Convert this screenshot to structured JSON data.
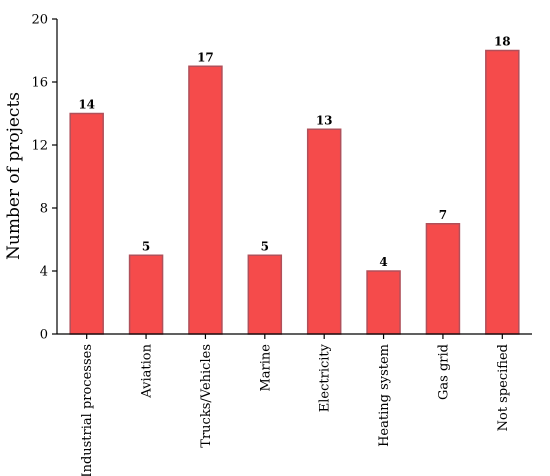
{
  "chart_data": {
    "type": "bar",
    "title": "",
    "xlabel": "",
    "ylabel": "Number of projects",
    "ylim": [
      0,
      20
    ],
    "yticks": [
      0,
      4,
      8,
      12,
      16,
      20
    ],
    "grid": false,
    "bar_color": "#f54b4b",
    "bar_edge_color": "#b0505a",
    "categories": [
      "Industrial processes",
      "Aviation",
      "Trucks/Vehicles",
      "Marine",
      "Electricity",
      "Heating system",
      "Gas grid",
      "Not specified"
    ],
    "values": [
      14,
      5,
      17,
      5,
      13,
      4,
      7,
      18
    ],
    "data_labels": [
      "14",
      "5",
      "17",
      "5",
      "13",
      "4",
      "7",
      "18"
    ]
  }
}
